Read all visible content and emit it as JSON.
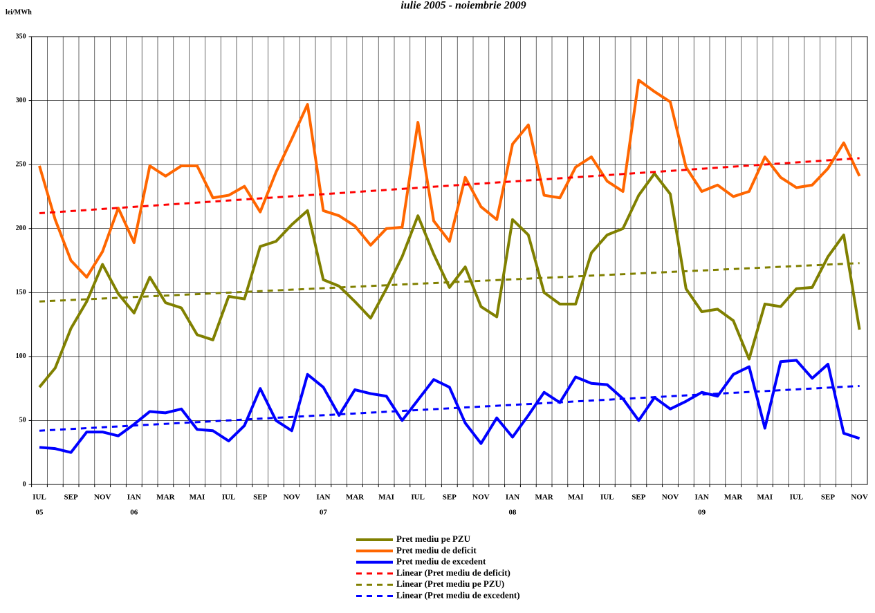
{
  "chart_data": {
    "type": "line",
    "title": "iulie 2005 - noiembrie 2009",
    "y_label": "lei/MWh",
    "categories": [
      "IUL",
      null,
      "SEP",
      null,
      "NOV",
      null,
      "IAN",
      null,
      "MAR",
      null,
      "MAI",
      null,
      "IUL",
      null,
      "SEP",
      null,
      "NOV",
      null,
      "IAN",
      null,
      "MAR",
      null,
      "MAI",
      null,
      "IUL",
      null,
      "SEP",
      null,
      "NOV",
      null,
      "IAN",
      null,
      "MAR",
      null,
      "MAI",
      null,
      "IUL",
      null,
      "SEP",
      null,
      "NOV",
      null,
      "IAN",
      null,
      "MAR",
      null,
      "MAI",
      null,
      "IUL",
      null,
      "SEP",
      null,
      "NOV"
    ],
    "category_years": [
      "05",
      null,
      null,
      null,
      null,
      null,
      "06",
      null,
      null,
      null,
      null,
      null,
      null,
      null,
      null,
      null,
      null,
      null,
      "07",
      null,
      null,
      null,
      null,
      null,
      null,
      null,
      null,
      null,
      null,
      null,
      "08",
      null,
      null,
      null,
      null,
      null,
      null,
      null,
      null,
      null,
      null,
      null,
      "09",
      null,
      null,
      null,
      null,
      null,
      null,
      null,
      null,
      null,
      null
    ],
    "series": [
      {
        "name": "Pret mediu pe PZU",
        "color": "#808000",
        "values": [
          76,
          91,
          122,
          143,
          172,
          149,
          134,
          162,
          142,
          138,
          117,
          113,
          147,
          145,
          186,
          190,
          203,
          214,
          160,
          155,
          143,
          130,
          153,
          178,
          210,
          180,
          154,
          170,
          139,
          131,
          207,
          195,
          150,
          141,
          141,
          181,
          195,
          200,
          226,
          243,
          227,
          153,
          135,
          137,
          128,
          98,
          141,
          139,
          153,
          154,
          178,
          195,
          121
        ]
      },
      {
        "name": "Pret mediu de deficit",
        "color": "#ff6600",
        "values": [
          249,
          207,
          175,
          162,
          182,
          216,
          189,
          249,
          241,
          249,
          249,
          224,
          226,
          233,
          213,
          244,
          270,
          297,
          214,
          210,
          202,
          187,
          200,
          201,
          283,
          206,
          190,
          240,
          217,
          207,
          266,
          281,
          226,
          224,
          248,
          256,
          237,
          229,
          316,
          307,
          299,
          248,
          229,
          234,
          225,
          229,
          256,
          240,
          232,
          234,
          247,
          267,
          241
        ]
      },
      {
        "name": "Pret mediu de excedent",
        "color": "#0000ff",
        "values": [
          29,
          28,
          25,
          41,
          41,
          38,
          47,
          57,
          56,
          59,
          43,
          42,
          34,
          46,
          75,
          50,
          42,
          86,
          76,
          54,
          74,
          71,
          69,
          50,
          66,
          82,
          76,
          48,
          32,
          52,
          37,
          54,
          72,
          64,
          84,
          79,
          78,
          67,
          50,
          68,
          59,
          65,
          72,
          69,
          86,
          92,
          44,
          96,
          97,
          83,
          94,
          40,
          36
        ]
      },
      {
        "name": "Linear (Pret mediu de deficit)",
        "color": "#ff0000",
        "dashed": true,
        "x": [
          0,
          52
        ],
        "values": [
          212,
          255
        ]
      },
      {
        "name": "Linear (Pret mediu pe PZU)",
        "color": "#808000",
        "dashed": true,
        "x": [
          0,
          52
        ],
        "values": [
          143,
          173
        ]
      },
      {
        "name": "Linear (Pret mediu de excedent)",
        "color": "#0000ff",
        "dashed": true,
        "x": [
          0,
          52
        ],
        "values": [
          42,
          77
        ]
      }
    ],
    "ylim": [
      0,
      350
    ],
    "yticks": [
      0,
      50,
      100,
      150,
      200,
      250,
      300,
      350
    ],
    "grid": true
  }
}
